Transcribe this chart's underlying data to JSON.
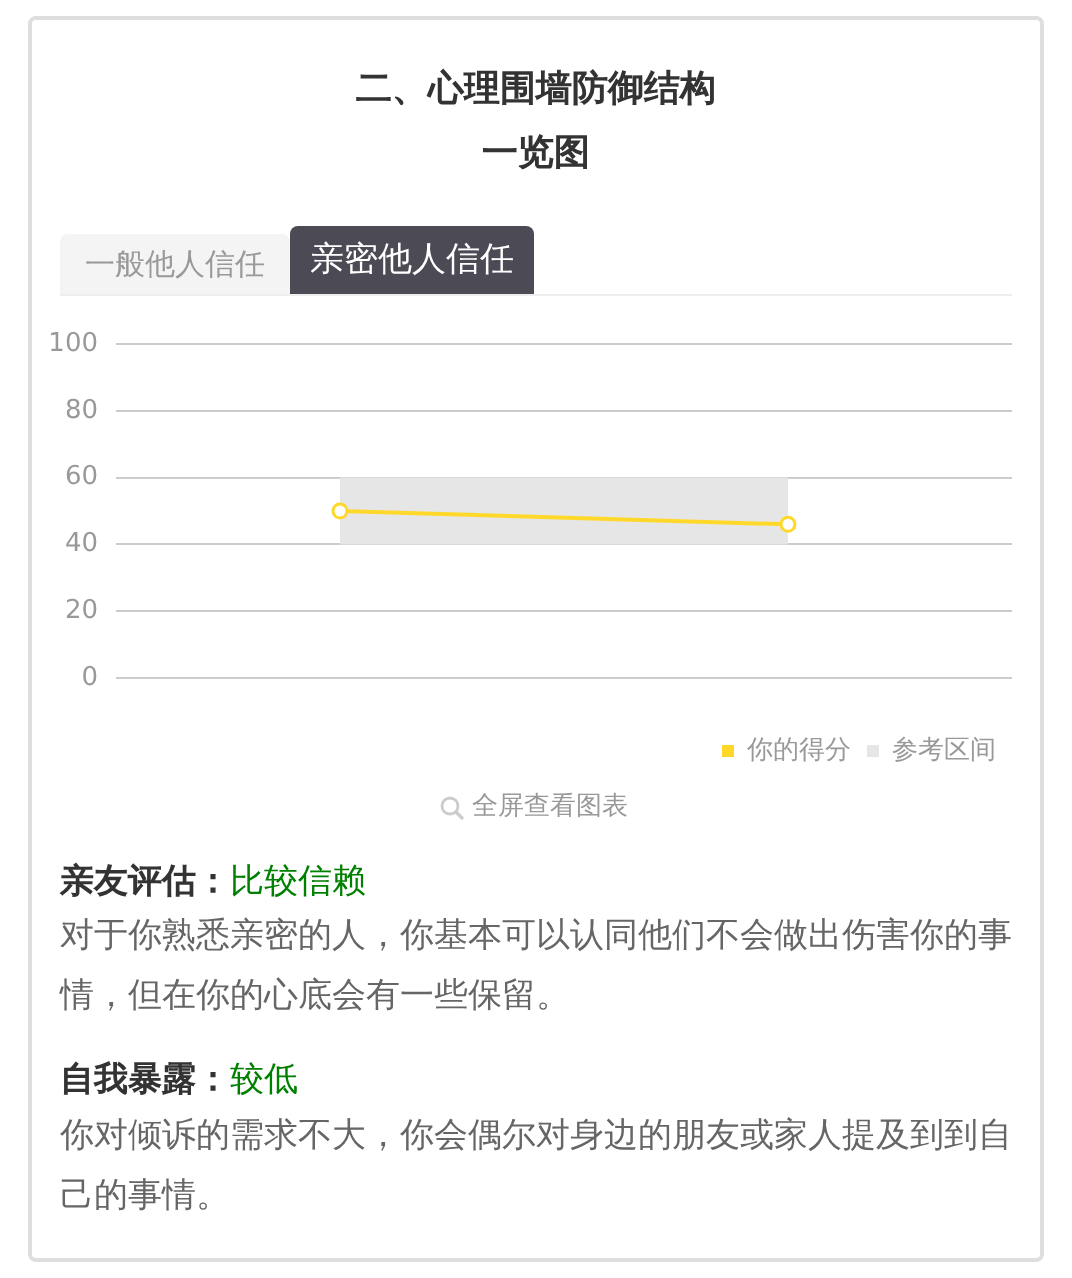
{
  "chart_data": {
    "type": "line",
    "title": "二、心理围墙防御结构一览图",
    "categories": [
      null,
      null
    ],
    "series": [
      {
        "name": "你的得分",
        "color": "#ffd82a",
        "values": [
          50,
          46
        ]
      }
    ],
    "bands": [
      {
        "axis": "y",
        "from": 40,
        "to": 60,
        "label": "参考区间",
        "color": "#e6e6e6"
      }
    ],
    "ylim": [
      0,
      100
    ],
    "yticks": [
      0,
      20,
      40,
      60,
      80,
      100
    ],
    "grid": "y",
    "legend": "bottom right",
    "marker": "circle",
    "line_style": "solid",
    "tick_labels": "y",
    "annotations": [
      "一般他人信任",
      "亲密他人信任",
      "全屏查看图表",
      "亲友评估：",
      "比较信赖",
      "对于你熟悉亲密的人，你基本可以认同他们不会做出伤害你的事情，但在你的心底会有一些保留。",
      "自我暴露：",
      "较低",
      "你对倾诉的需求不大，你会偶尔对身边的朋友或家人提及到到自己的事情。"
    ]
  }
}
